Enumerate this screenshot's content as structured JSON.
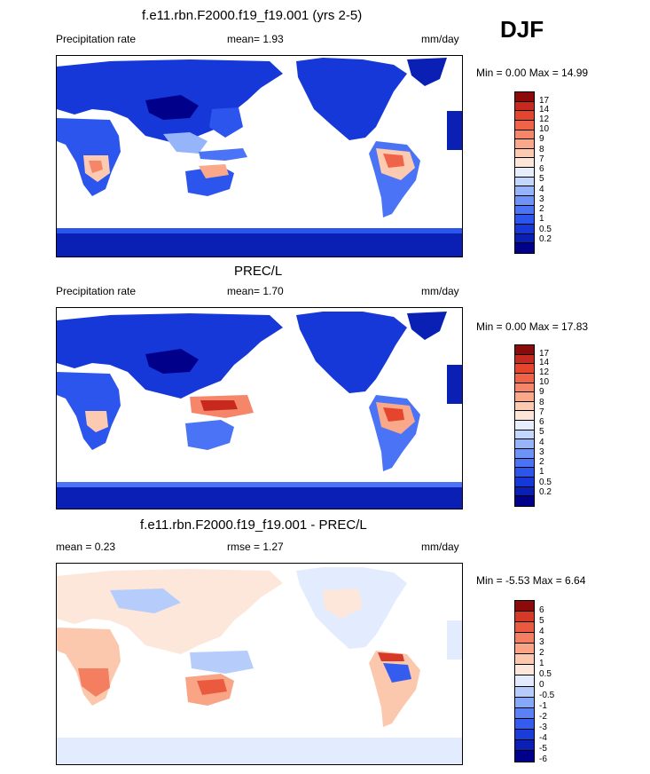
{
  "season": "DJF",
  "colors": {
    "abs_palette": [
      "#00008b",
      "#0a1fb4",
      "#1638d8",
      "#2c55ee",
      "#4a74f5",
      "#6d93f7",
      "#96b4fa",
      "#c3d6fc",
      "#e6eefe",
      "#fde6d8",
      "#fccab0",
      "#f9a98a",
      "#f5866a",
      "#ef6448",
      "#e5452d",
      "#c8291e",
      "#8b0a0a"
    ],
    "diff_palette": [
      "#00008b",
      "#0b1fb4",
      "#1a3cd8",
      "#345df0",
      "#5a82f6",
      "#86a8fa",
      "#b6cdfc",
      "#e2ecfe",
      "#fde7da",
      "#fbc8ae",
      "#f8a485",
      "#f37f60",
      "#ea5a3f",
      "#d63a27",
      "#8b0a0a"
    ]
  },
  "panels": [
    {
      "title": "f.e11.rbn.F2000.f19_f19.001 (yrs 2-5)",
      "left_label": "Precipitation rate",
      "center_label": "mean=   1.93",
      "right_label": "mm/day",
      "minmax": "Min =    0.00 Max =  14.99",
      "colorbar_labels": [
        "17",
        "14",
        "12",
        "10",
        "9",
        "8",
        "7",
        "6",
        "5",
        "4",
        "3",
        "2",
        "1",
        "0.5",
        "0.2"
      ]
    },
    {
      "title": "PREC/L",
      "left_label": "Precipitation rate",
      "center_label": "mean=    1.70",
      "right_label": "mm/day",
      "minmax": "Min =    0.00 Max =  17.83",
      "colorbar_labels": [
        "17",
        "14",
        "12",
        "10",
        "9",
        "8",
        "7",
        "6",
        "5",
        "4",
        "3",
        "2",
        "1",
        "0.5",
        "0.2"
      ]
    },
    {
      "title": "f.e11.rbn.F2000.f19_f19.001 - PREC/L",
      "left_label": "mean =    0.23",
      "center_label": "rmse =    1.27",
      "right_label": "mm/day",
      "minmax": "Min =   -5.53 Max =    6.64",
      "colorbar_labels": [
        "6",
        "5",
        "4",
        "3",
        "2",
        "1",
        "0.5",
        "0",
        "-0.5",
        "-1",
        "-2",
        "-3",
        "-4",
        "-5",
        "-6"
      ]
    }
  ]
}
